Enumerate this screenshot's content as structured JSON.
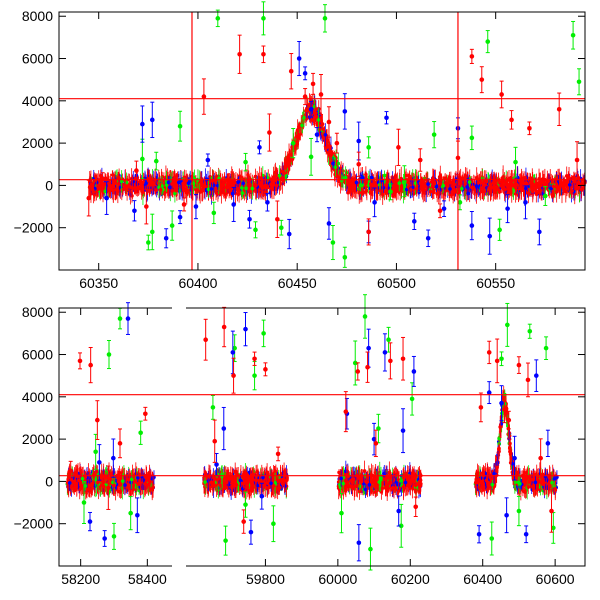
{
  "chart_data": [
    {
      "type": "scatter",
      "panel": "top",
      "title": "",
      "xlabel": "",
      "ylabel": "",
      "xlim": [
        60330,
        60595
      ],
      "ylim": [
        -4000,
        8200
      ],
      "xticks": [
        60350,
        60400,
        60450,
        60500,
        60550
      ],
      "yticks": [
        -2000,
        0,
        2000,
        4000,
        6000,
        8000
      ],
      "hlines": [
        4100,
        270
      ],
      "vlines": [
        60397,
        60531
      ],
      "colors": {
        "green": "#00ee00",
        "blue": "#0000ff",
        "red": "#ff0000"
      },
      "series": [
        {
          "color": "green",
          "points": [
            [
              60372,
              1250
            ],
            [
              60375,
              -2700
            ],
            [
              60377,
              -2200
            ],
            [
              60379,
              1150
            ],
            [
              60387,
              -1900
            ],
            [
              60391,
              2800
            ],
            [
              60408,
              -1300
            ],
            [
              60410,
              7900
            ],
            [
              60424,
              1100
            ],
            [
              60429,
              -2100
            ],
            [
              60433,
              7900
            ],
            [
              60442,
              -2000
            ],
            [
              60448,
              2000
            ],
            [
              60457,
              1350
            ],
            [
              60464,
              7900
            ],
            [
              60468,
              -2700
            ],
            [
              60474,
              -3400
            ],
            [
              60486,
              1800
            ],
            [
              60497,
              -300
            ],
            [
              60504,
              200
            ],
            [
              60519,
              2400
            ],
            [
              60532,
              -800
            ],
            [
              60538,
              2250
            ],
            [
              60546,
              6800
            ],
            [
              60552,
              -2100
            ],
            [
              60560,
              1100
            ],
            [
              60575,
              -500
            ],
            [
              60589,
              7100
            ],
            [
              60592,
              4900
            ]
          ]
        },
        {
          "color": "blue",
          "points": [
            [
              60354,
              -600
            ],
            [
              60368,
              -1200
            ],
            [
              60372,
              2900
            ],
            [
              60377,
              3100
            ],
            [
              60384,
              -2500
            ],
            [
              60391,
              -1500
            ],
            [
              60399,
              -1000
            ],
            [
              60405,
              1200
            ],
            [
              60418,
              -900
            ],
            [
              60426,
              -1600
            ],
            [
              60431,
              1800
            ],
            [
              60435,
              -800
            ],
            [
              60446,
              -2300
            ],
            [
              60451,
              6000
            ],
            [
              60454,
              5300
            ],
            [
              60457,
              3600
            ],
            [
              60460,
              2400
            ],
            [
              60466,
              -1800
            ],
            [
              60474,
              3500
            ],
            [
              60481,
              2100
            ],
            [
              60486,
              -2200
            ],
            [
              60489,
              -800
            ],
            [
              60495,
              3200
            ],
            [
              60509,
              -1700
            ],
            [
              60516,
              -2500
            ],
            [
              60524,
              -1100
            ],
            [
              60531,
              2700
            ],
            [
              60538,
              -1900
            ],
            [
              60547,
              -2400
            ],
            [
              60556,
              -1100
            ],
            [
              60565,
              -800
            ],
            [
              60572,
              -2200
            ]
          ]
        },
        {
          "color": "red",
          "points": [
            [
              60345,
              -600
            ],
            [
              60352,
              300
            ],
            [
              60369,
              700
            ],
            [
              60374,
              -1000
            ],
            [
              60393,
              -900
            ],
            [
              60403,
              4200
            ],
            [
              60421,
              6200
            ],
            [
              60433,
              6200
            ],
            [
              60436,
              2500
            ],
            [
              60440,
              -1600
            ],
            [
              60447,
              5400
            ],
            [
              60454,
              4200
            ],
            [
              60458,
              4800
            ],
            [
              60462,
              4300
            ],
            [
              60466,
              3000
            ],
            [
              60470,
              2000
            ],
            [
              60481,
              1000
            ],
            [
              60486,
              -2200
            ],
            [
              60501,
              1800
            ],
            [
              60512,
              1200
            ],
            [
              60522,
              -1200
            ],
            [
              60531,
              1300
            ],
            [
              60538,
              6100
            ],
            [
              60543,
              5000
            ],
            [
              60553,
              4300
            ],
            [
              60558,
              3100
            ],
            [
              60567,
              2700
            ],
            [
              60582,
              3600
            ],
            [
              60591,
              1200
            ]
          ]
        }
      ]
    },
    {
      "type": "scatter",
      "panel": "bottom",
      "title": "",
      "xlabel": "",
      "ylabel": "",
      "ylim": [
        -4000,
        8200
      ],
      "xticks": [
        58200,
        58400,
        59800,
        60000,
        60200,
        60400,
        60600
      ],
      "yticks": [
        -2000,
        0,
        2000,
        4000,
        6000,
        8000
      ],
      "hlines": [
        4100,
        270
      ],
      "axis_breaks": [
        58450,
        59600
      ],
      "segments": [
        {
          "xlim": [
            58150,
            58450
          ]
        },
        {
          "xlim": [
            59600,
            60630
          ]
        }
      ],
      "colors": {
        "green": "#00ee00",
        "blue": "#0000ff",
        "red": "#ff0000"
      },
      "series": [
        {
          "color": "green",
          "points": [
            [
              58210,
              -1000
            ],
            [
              58245,
              1400
            ],
            [
              58285,
              6000
            ],
            [
              58300,
              -2600
            ],
            [
              58318,
              7700
            ],
            [
              58350,
              -1500
            ],
            [
              58380,
              2300
            ],
            [
              59655,
              3500
            ],
            [
              59690,
              -2800
            ],
            [
              59715,
              6300
            ],
            [
              59745,
              -1100
            ],
            [
              59770,
              5000
            ],
            [
              59795,
              7000
            ],
            [
              59822,
              -2000
            ],
            [
              60010,
              -1500
            ],
            [
              60048,
              5600
            ],
            [
              60075,
              7800
            ],
            [
              60090,
              -3200
            ],
            [
              60112,
              2500
            ],
            [
              60140,
              6700
            ],
            [
              60175,
              -2100
            ],
            [
              60205,
              3900
            ],
            [
              60425,
              -2700
            ],
            [
              60452,
              5800
            ],
            [
              60468,
              7400
            ],
            [
              60500,
              -1400
            ],
            [
              60530,
              7100
            ],
            [
              60575,
              6300
            ],
            [
              60595,
              -2200
            ]
          ]
        },
        {
          "color": "blue",
          "points": [
            [
              58228,
              -1900
            ],
            [
              58256,
              900
            ],
            [
              58272,
              -2700
            ],
            [
              58298,
              1100
            ],
            [
              58342,
              7700
            ],
            [
              58370,
              -1600
            ],
            [
              59665,
              800
            ],
            [
              59685,
              2500
            ],
            [
              59710,
              6100
            ],
            [
              59745,
              7200
            ],
            [
              59760,
              -2400
            ],
            [
              59790,
              -700
            ],
            [
              60025,
              3200
            ],
            [
              60058,
              -2900
            ],
            [
              60085,
              6300
            ],
            [
              60100,
              2000
            ],
            [
              60130,
              6100
            ],
            [
              60168,
              -1400
            ],
            [
              60180,
              2400
            ],
            [
              60210,
              5200
            ],
            [
              60390,
              -2500
            ],
            [
              60418,
              4200
            ],
            [
              60452,
              3700
            ],
            [
              60466,
              -1600
            ],
            [
              60488,
              1100
            ],
            [
              60520,
              -2500
            ],
            [
              60548,
              5000
            ],
            [
              60580,
              1800
            ]
          ]
        },
        {
          "color": "red",
          "points": [
            [
              58170,
              500
            ],
            [
              58198,
              5700
            ],
            [
              58230,
              5500
            ],
            [
              58250,
              2900
            ],
            [
              58283,
              -300
            ],
            [
              58318,
              1800
            ],
            [
              58394,
              3200
            ],
            [
              59635,
              6700
            ],
            [
              59660,
              1900
            ],
            [
              59686,
              7300
            ],
            [
              59712,
              5000
            ],
            [
              59740,
              -1900
            ],
            [
              59770,
              5800
            ],
            [
              59800,
              5300
            ],
            [
              59835,
              1300
            ],
            [
              60022,
              3300
            ],
            [
              60055,
              5200
            ],
            [
              60082,
              5400
            ],
            [
              60105,
              1800
            ],
            [
              60145,
              5700
            ],
            [
              60180,
              5800
            ],
            [
              60215,
              -1200
            ],
            [
              60395,
              3500
            ],
            [
              60418,
              6100
            ],
            [
              60440,
              5700
            ],
            [
              60460,
              3400
            ],
            [
              60472,
              2900
            ],
            [
              60500,
              5500
            ],
            [
              60525,
              4800
            ],
            [
              60560,
              1100
            ],
            [
              60590,
              -1400
            ]
          ]
        }
      ]
    }
  ]
}
